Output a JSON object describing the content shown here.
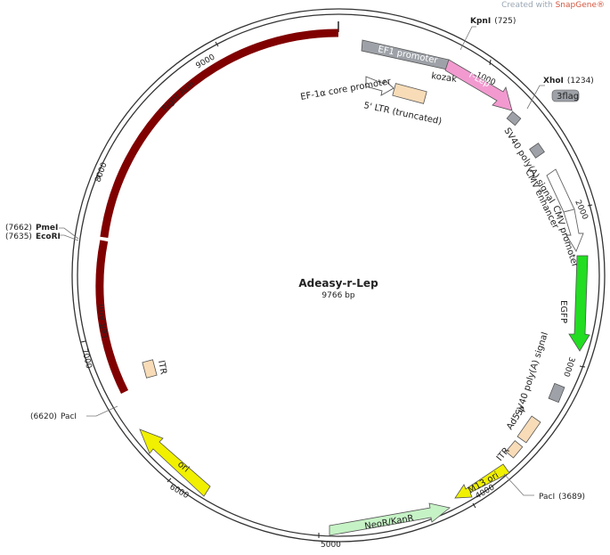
{
  "credit": {
    "prefix": "Created with",
    "brand": "SnapGene®"
  },
  "plasmid": {
    "name": "Adeasy-r-Lep",
    "length_label": "9766 bp",
    "length": 9766,
    "colors": {
      "right_arm": "#800000",
      "left_arm": "#800000",
      "ef1": "#9ea2a8",
      "rlep": "#f29ad0",
      "gray_box": "#9ea2a8",
      "egfp": "#22dd22",
      "itr": "#f8dcb8",
      "m13": "#f0f000",
      "neo": "#c6f3c6",
      "ori": "#f0f000",
      "cmv": "#ffffff",
      "outline": "#555555"
    },
    "ticks": [
      "1000",
      "2000",
      "3000",
      "4000",
      "5000",
      "6000",
      "7000",
      "8000",
      "9000"
    ],
    "sites": [
      {
        "name": "KpnI",
        "pos": "(725)"
      },
      {
        "name": "XhoI",
        "pos": "(1234)"
      },
      {
        "name": "PacI",
        "pos": "(3689)"
      },
      {
        "name": "PacI",
        "pos": "(6620)"
      },
      {
        "name": "PmeI",
        "pos": "(7662)"
      },
      {
        "name": "EcoRI",
        "pos": "(7635)"
      }
    ],
    "features": {
      "ef1": "EF1 promoter",
      "kozak": "kozak",
      "rlep": "r-Lep",
      "flag": "3flag",
      "sv40_1": "SV40 poly(A) signal",
      "cmv_enh": "CMV enhancer",
      "cmv_pro": "CMV promoter",
      "egfp": "EGFP",
      "sv40_2": "SV40 poly(A) signal",
      "ad5": "Ad5 ψ",
      "itr_a": "ITR",
      "m13": "M13 ori",
      "neo": "NeoR/KanR",
      "ori": "ori",
      "itr_b": "ITR",
      "left_arm": "Left Arm",
      "right_arm": "Right Arm",
      "ef1a_core": "EF-1α core promoter",
      "ltr": "5' LTR (truncated)"
    }
  }
}
